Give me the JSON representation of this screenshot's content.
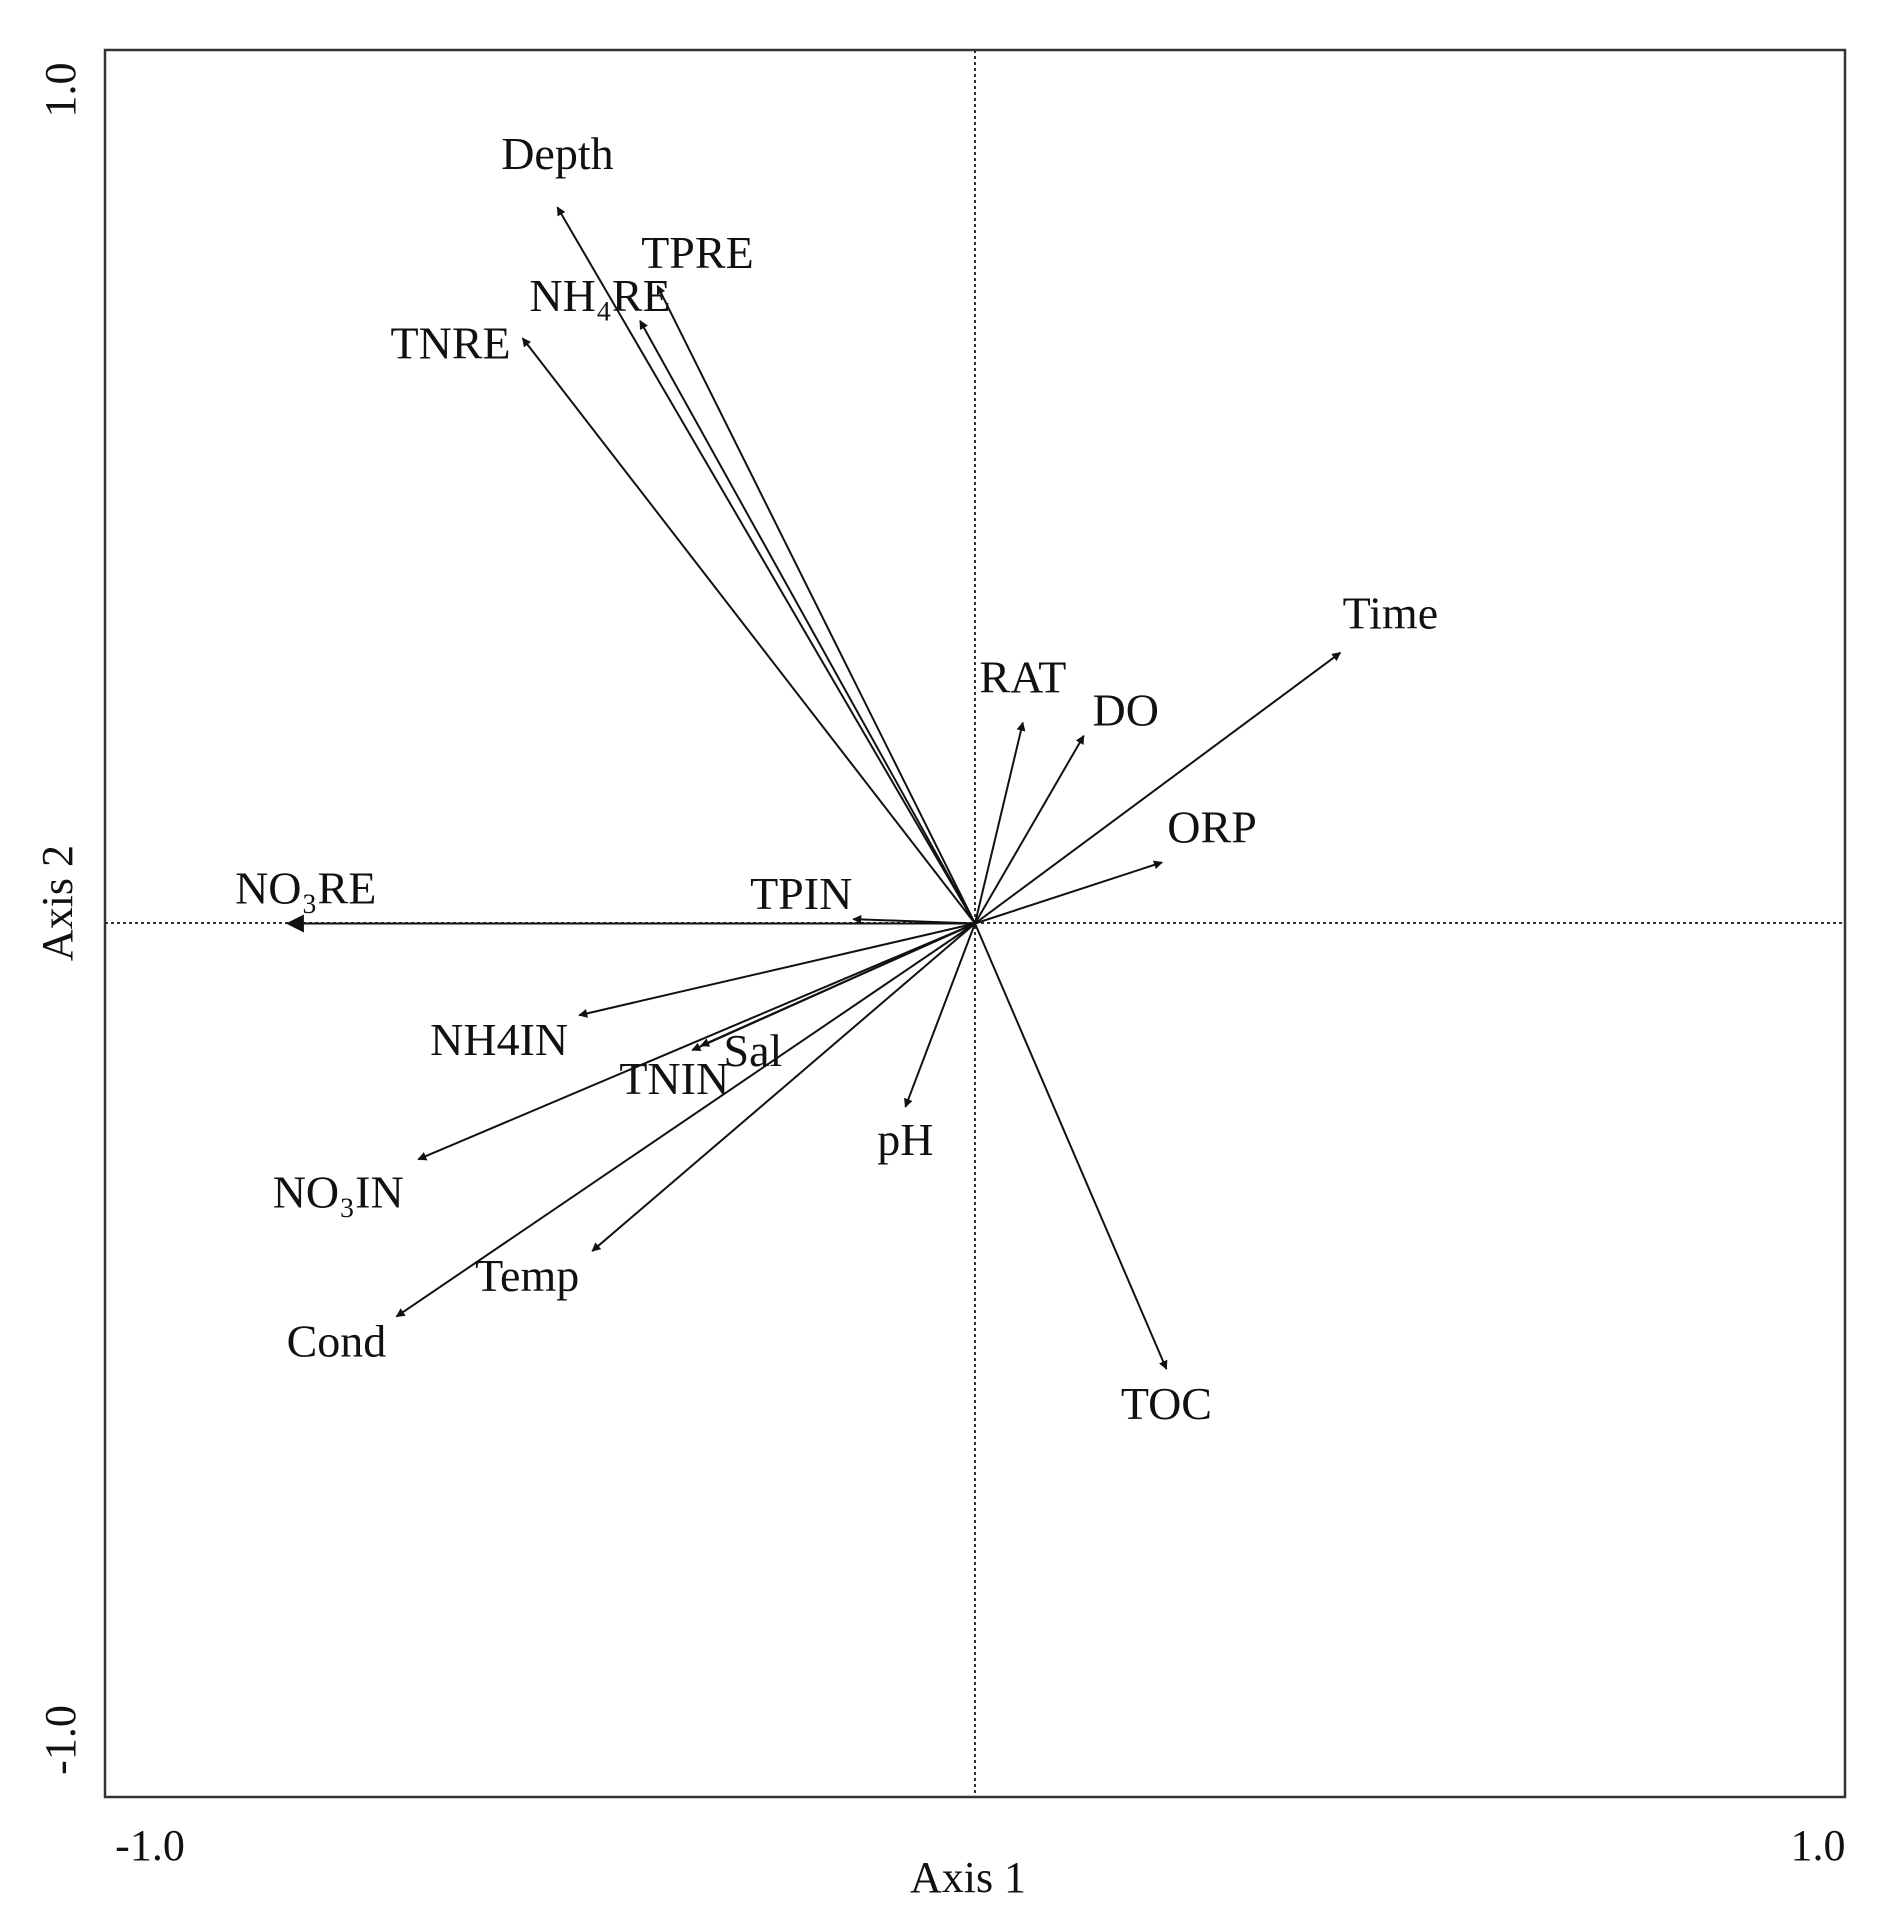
{
  "chart_data": {
    "type": "biplot",
    "xlabel": "Axis 1",
    "ylabel": "Axis 2",
    "xlim": [
      -1.0,
      1.0
    ],
    "ylim": [
      -1.0,
      1.0
    ],
    "x_ticks": [
      "-1.0",
      "1.0"
    ],
    "y_ticks": [
      "-1.0",
      "1.0"
    ],
    "zero_lines": "dashed",
    "grid": false,
    "vectors": [
      {
        "name": "Depth",
        "label": "Depth",
        "x": -0.48,
        "y": 0.82
      },
      {
        "name": "TPRE",
        "label": "TPRE",
        "x": -0.365,
        "y": 0.73
      },
      {
        "name": "NH4RE",
        "label": "NH₄RE",
        "x": -0.385,
        "y": 0.69
      },
      {
        "name": "TNRE",
        "label": "TNRE",
        "x": -0.52,
        "y": 0.67
      },
      {
        "name": "Time",
        "label": "Time",
        "x": 0.42,
        "y": 0.31
      },
      {
        "name": "RAT",
        "label": "RAT",
        "x": 0.055,
        "y": 0.23
      },
      {
        "name": "DO",
        "label": "DO",
        "x": 0.125,
        "y": 0.215
      },
      {
        "name": "ORP",
        "label": "ORP",
        "x": 0.215,
        "y": 0.07
      },
      {
        "name": "NO3RE",
        "label": "NO₃RE",
        "x": -0.79,
        "y": 0.0
      },
      {
        "name": "TPIN",
        "label": "TPIN",
        "x": -0.14,
        "y": 0.005
      },
      {
        "name": "NH4IN",
        "label": "NH4IN",
        "x": -0.455,
        "y": -0.105
      },
      {
        "name": "Sal",
        "label": "Sal",
        "x": -0.315,
        "y": -0.14
      },
      {
        "name": "TNIN",
        "label": "TNIN",
        "x": -0.325,
        "y": -0.145
      },
      {
        "name": "NO3IN",
        "label": "NO₃IN",
        "x": -0.64,
        "y": -0.27
      },
      {
        "name": "Temp",
        "label": "Temp",
        "x": -0.44,
        "y": -0.375
      },
      {
        "name": "Cond",
        "label": "Cond",
        "x": -0.665,
        "y": -0.45
      },
      {
        "name": "pH",
        "label": "pH",
        "x": -0.08,
        "y": -0.21
      },
      {
        "name": "TOC",
        "label": "TOC",
        "x": 0.22,
        "y": -0.51
      }
    ]
  }
}
